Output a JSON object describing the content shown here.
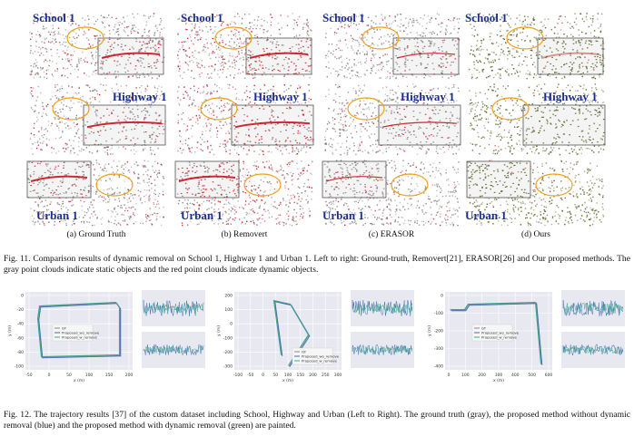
{
  "fig11": {
    "panels": [
      {
        "sub_caption": "(a) Ground Truth",
        "style": "gt"
      },
      {
        "sub_caption": "(b) Removert",
        "style": "removert"
      },
      {
        "sub_caption": "(c) ERASOR",
        "style": "erasor"
      },
      {
        "sub_caption": "(d) Ours",
        "style": "ours"
      }
    ],
    "scene_labels": {
      "school": "School 1",
      "highway": "Highway 1",
      "urban": "Urban 1"
    },
    "caption": "Fig. 11.  Comparison results of dynamic removal on School 1, Highway 1 and Urban 1. Left to right: Ground-truth, Removert[21], ERASOR[26] and Our proposed methods. The gray point clouds indicate static objects and the red point clouds indicate dynamic objects.",
    "colors": {
      "static": "#7a7a7a",
      "dynamic": "#c8141e",
      "ours_static": "#4a5a1a",
      "highlight": "#f0a020"
    }
  },
  "fig12": {
    "caption": "Fig. 12.  The trajectory results [37] of the custom dataset including School, Highway and Urban (Left to Right). The ground truth (gray), the proposed method without dynamic removal (blue) and the proposed method with dynamic removal (green) are painted.",
    "legend": [
      "GT",
      "Proposed_wo_remove",
      "Proposed_w_remove"
    ],
    "colors": {
      "gt": "#8a8a8a",
      "wo": "#3b6fb0",
      "w": "#3aa88a",
      "bg": "#e8e8f0"
    },
    "plots": [
      {
        "name": "School",
        "xlabel": "x (m)",
        "ylabel": "y (m)",
        "xticks": [
          "-50",
          "0",
          "50",
          "100",
          "150",
          "200"
        ],
        "yticks": [
          "0",
          "-20",
          "-40",
          "-60",
          "-80",
          "-100"
        ]
      },
      {
        "name": "Highway",
        "xlabel": "x (m)",
        "ylabel": "y (m)",
        "xticks": [
          "-100",
          "-50",
          "0",
          "50",
          "100",
          "150",
          "200",
          "250",
          "300"
        ],
        "yticks": [
          "200",
          "100",
          "0",
          "-100",
          "-200",
          "-300"
        ]
      },
      {
        "name": "Urban",
        "xlabel": "x (m)",
        "ylabel": "y (m)",
        "xticks": [
          "0",
          "100",
          "200",
          "300",
          "400",
          "500",
          "600"
        ],
        "yticks": [
          "0",
          "-100",
          "-200",
          "-300",
          "-400"
        ]
      }
    ]
  }
}
